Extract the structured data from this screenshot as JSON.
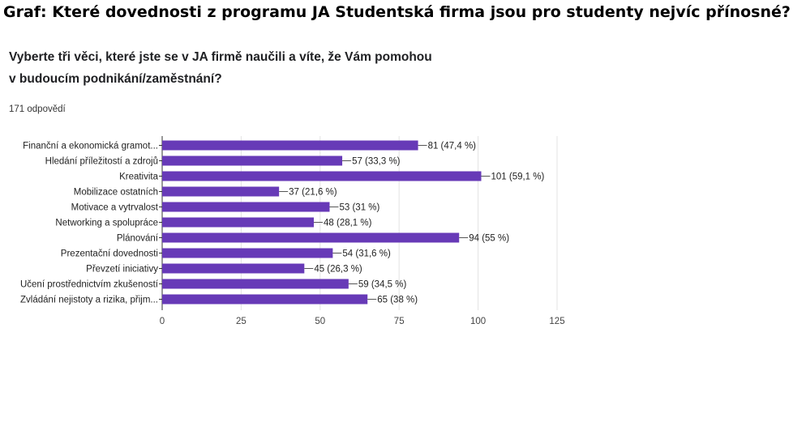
{
  "heading": "Graf: Které dovednosti z programu JA Studentská firma jsou pro studenty nejvíc přínosné?",
  "question": {
    "line1": "Vyberte tři věci, které jste se v JA firmě naučili a víte, že Vám pomohou",
    "line2": "v budoucím podnikání/zaměstnání?"
  },
  "responses_count": "171 odpovědí",
  "chart_data": {
    "type": "bar",
    "orientation": "horizontal",
    "categories": [
      "Finanční a ekonomická gramot...",
      "Hledání příležitostí a zdrojů",
      "Kreativita",
      "Mobilizace ostatních",
      "Motivace a vytrvalost",
      "Networking a spolupráce",
      "Plánování",
      "Prezentační dovednosti",
      "Převzetí iniciativy",
      "Učení prostřednictvím zkušeností",
      "Zvládání nejistoty a rizika, přijm..."
    ],
    "values": [
      81,
      57,
      101,
      37,
      53,
      48,
      94,
      54,
      45,
      59,
      65
    ],
    "value_labels": [
      "81 (47,4 %)",
      "57 (33,3 %)",
      "101 (59,1 %)",
      "37 (21,6 %)",
      "53 (31 %)",
      "48 (28,1 %)",
      "94 (55 %)",
      "54 (31,6 %)",
      "45 (26,3 %)",
      "59 (34,5 %)",
      "65 (38 %)"
    ],
    "xlim": [
      0,
      125
    ],
    "xticks": [
      0,
      25,
      50,
      75,
      100,
      125
    ],
    "grid": true,
    "bar_color": "#673ab7"
  }
}
